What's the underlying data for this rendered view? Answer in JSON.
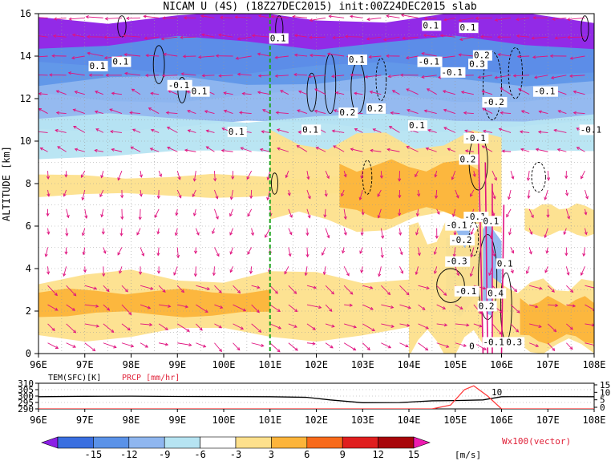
{
  "title": "NICAM U (4S) (18Z27DEC2015) init:00Z24DEC2015 slab",
  "chart_data": [
    {
      "type": "heatmap",
      "ylabel": "ALTITUDE [km]",
      "x_ticks": [
        "96E",
        "97E",
        "98E",
        "99E",
        "100E",
        "101E",
        "102E",
        "103E",
        "104E",
        "105E",
        "106E",
        "107E",
        "108E"
      ],
      "xlim": [
        96,
        108
      ],
      "y_ticks": [
        "0",
        "2",
        "4",
        "6",
        "8",
        "10",
        "12",
        "14",
        "16"
      ],
      "ylim": [
        0,
        16
      ],
      "grid": true,
      "marker_line_lon": 101,
      "bands": [
        {
          "lon": [
            96,
            108
          ],
          "alt": [
            13.3,
            16
          ],
          "value": -15
        },
        {
          "lon": [
            96,
            108
          ],
          "alt": [
            12.0,
            14.8
          ],
          "value": -9
        },
        {
          "lon": [
            96,
            108
          ],
          "alt": [
            10.6,
            13.0
          ],
          "value": -6
        },
        {
          "lon": [
            96,
            108
          ],
          "alt": [
            9.3,
            11.2
          ],
          "value": -3
        },
        {
          "lon": [
            96,
            103.5
          ],
          "alt": [
            7.4,
            8.4
          ],
          "value": 3
        },
        {
          "lon": [
            101,
            106
          ],
          "alt": [
            6.0,
            10.3
          ],
          "value": 3
        },
        {
          "lon": [
            102.5,
            105.5
          ],
          "alt": [
            6.5,
            9.0
          ],
          "value": 6
        },
        {
          "lon": [
            104.8,
            106
          ],
          "alt": [
            2.0,
            6.0
          ],
          "value": -6
        },
        {
          "lon": [
            96,
            104
          ],
          "alt": [
            0.8,
            3.8
          ],
          "value": 3
        },
        {
          "lon": [
            96,
            101
          ],
          "alt": [
            1.8,
            3.0
          ],
          "value": 6
        },
        {
          "lon": [
            104,
            105.6
          ],
          "alt": [
            0.2,
            6.0
          ],
          "value": 3
        },
        {
          "lon": [
            105.8,
            108
          ],
          "alt": [
            0.2,
            3.4
          ],
          "value": 3
        },
        {
          "lon": [
            106.4,
            108
          ],
          "alt": [
            0.6,
            2.6
          ],
          "value": 6
        },
        {
          "lon": [
            106.5,
            108
          ],
          "alt": [
            5.6,
            7.0
          ],
          "value": 3
        }
      ],
      "contour_labels": [
        {
          "text": "0.1",
          "lon": 97.1,
          "alt": 13.4
        },
        {
          "text": "0.1",
          "lon": 97.6,
          "alt": 13.6
        },
        {
          "text": "0.1",
          "lon": 101.0,
          "alt": 14.7
        },
        {
          "text": "0.1",
          "lon": 102.7,
          "alt": 13.7
        },
        {
          "text": "0.1",
          "lon": 104.3,
          "alt": 15.3
        },
        {
          "text": "0.1",
          "lon": 105.1,
          "alt": 15.2
        },
        {
          "text": "-0.1",
          "lon": 98.8,
          "alt": 12.5
        },
        {
          "text": "0.1",
          "lon": 99.3,
          "alt": 12.2
        },
        {
          "text": "-0.1",
          "lon": 104.2,
          "alt": 13.6
        },
        {
          "text": "-0.1",
          "lon": 104.7,
          "alt": 13.1
        },
        {
          "text": "0.2",
          "lon": 105.4,
          "alt": 13.9
        },
        {
          "text": "0.3",
          "lon": 105.3,
          "alt": 13.5
        },
        {
          "text": "0.2",
          "lon": 102.5,
          "alt": 11.2
        },
        {
          "text": "0.2",
          "lon": 103.1,
          "alt": 11.4
        },
        {
          "text": "0.1",
          "lon": 104.0,
          "alt": 10.6
        },
        {
          "text": "0.1",
          "lon": 100.1,
          "alt": 10.3
        },
        {
          "text": "0.1",
          "lon": 101.7,
          "alt": 10.4
        },
        {
          "text": "-0.2",
          "lon": 105.6,
          "alt": 11.7
        },
        {
          "text": "-0.1",
          "lon": 106.7,
          "alt": 12.2
        },
        {
          "text": "-0.1",
          "lon": 107.7,
          "alt": 10.4
        },
        {
          "text": "-0.1",
          "lon": 105.2,
          "alt": 10.0
        },
        {
          "text": "0.2",
          "lon": 105.1,
          "alt": 9.0
        },
        {
          "text": "-0.1",
          "lon": 105.2,
          "alt": 6.3
        },
        {
          "text": "0.1",
          "lon": 105.6,
          "alt": 6.1
        },
        {
          "text": "-0.1",
          "lon": 104.8,
          "alt": 5.9
        },
        {
          "text": "-0.2",
          "lon": 104.9,
          "alt": 5.2
        },
        {
          "text": "-0.3",
          "lon": 104.8,
          "alt": 4.2
        },
        {
          "text": "0.1",
          "lon": 105.9,
          "alt": 4.1
        },
        {
          "text": "0.4",
          "lon": 105.7,
          "alt": 2.7
        },
        {
          "text": "-0.1",
          "lon": 105.0,
          "alt": 2.8
        },
        {
          "text": "0.2",
          "lon": 105.5,
          "alt": 2.1
        },
        {
          "text": "0",
          "lon": 105.3,
          "alt": 0.2
        },
        {
          "text": "-0.1",
          "lon": 105.6,
          "alt": 0.4
        },
        {
          "text": "0.3",
          "lon": 106.1,
          "alt": 0.4
        }
      ]
    },
    {
      "type": "line",
      "series": [
        {
          "name": "TEM(SFC)[K]",
          "color": "#000000",
          "x": [
            96,
            97,
            98,
            99,
            100,
            101,
            101.8,
            102.3,
            103,
            103.8,
            104.5,
            105,
            105.6,
            106,
            107,
            108
          ],
          "y": [
            299.5,
            299.8,
            299.9,
            299.7,
            299.6,
            299.5,
            299.0,
            297.0,
            294.8,
            294.9,
            296.3,
            296.5,
            297.0,
            299.5,
            299.6,
            299.5
          ]
        },
        {
          "name": "PRCP [mm/hr]",
          "color": "#ff3a3a",
          "x": [
            96,
            104.5,
            104.9,
            105.2,
            105.4,
            105.7,
            106.0,
            108
          ],
          "y": [
            0,
            0,
            3,
            15,
            18,
            10,
            0,
            0
          ]
        }
      ],
      "xlim": [
        96,
        108
      ],
      "left_ticks": [
        "310",
        "305",
        "300",
        "295",
        "290"
      ],
      "right_ticks": [
        "15",
        "10",
        "5",
        "0"
      ],
      "annotation": "10"
    }
  ],
  "colorbar": {
    "labels": [
      "-15",
      "-12",
      "-9",
      "-6",
      "-3",
      "3",
      "6",
      "9",
      "12",
      "15"
    ],
    "unit": "[m/s]",
    "colors": [
      "#8c1fe6",
      "#3a6fe0",
      "#5a92e8",
      "#8fb6ef",
      "#b6e4f2",
      "#ffffff",
      "#fde08c",
      "#fcb43a",
      "#f86a1a",
      "#e01e1e",
      "#a8060a",
      "#ee1bb0"
    ]
  },
  "vector_label": "Wx100(vector)",
  "colors": {
    "arrow": "#e0127f",
    "marker_line": "#1fa51f",
    "label_red": "#e0233a"
  }
}
